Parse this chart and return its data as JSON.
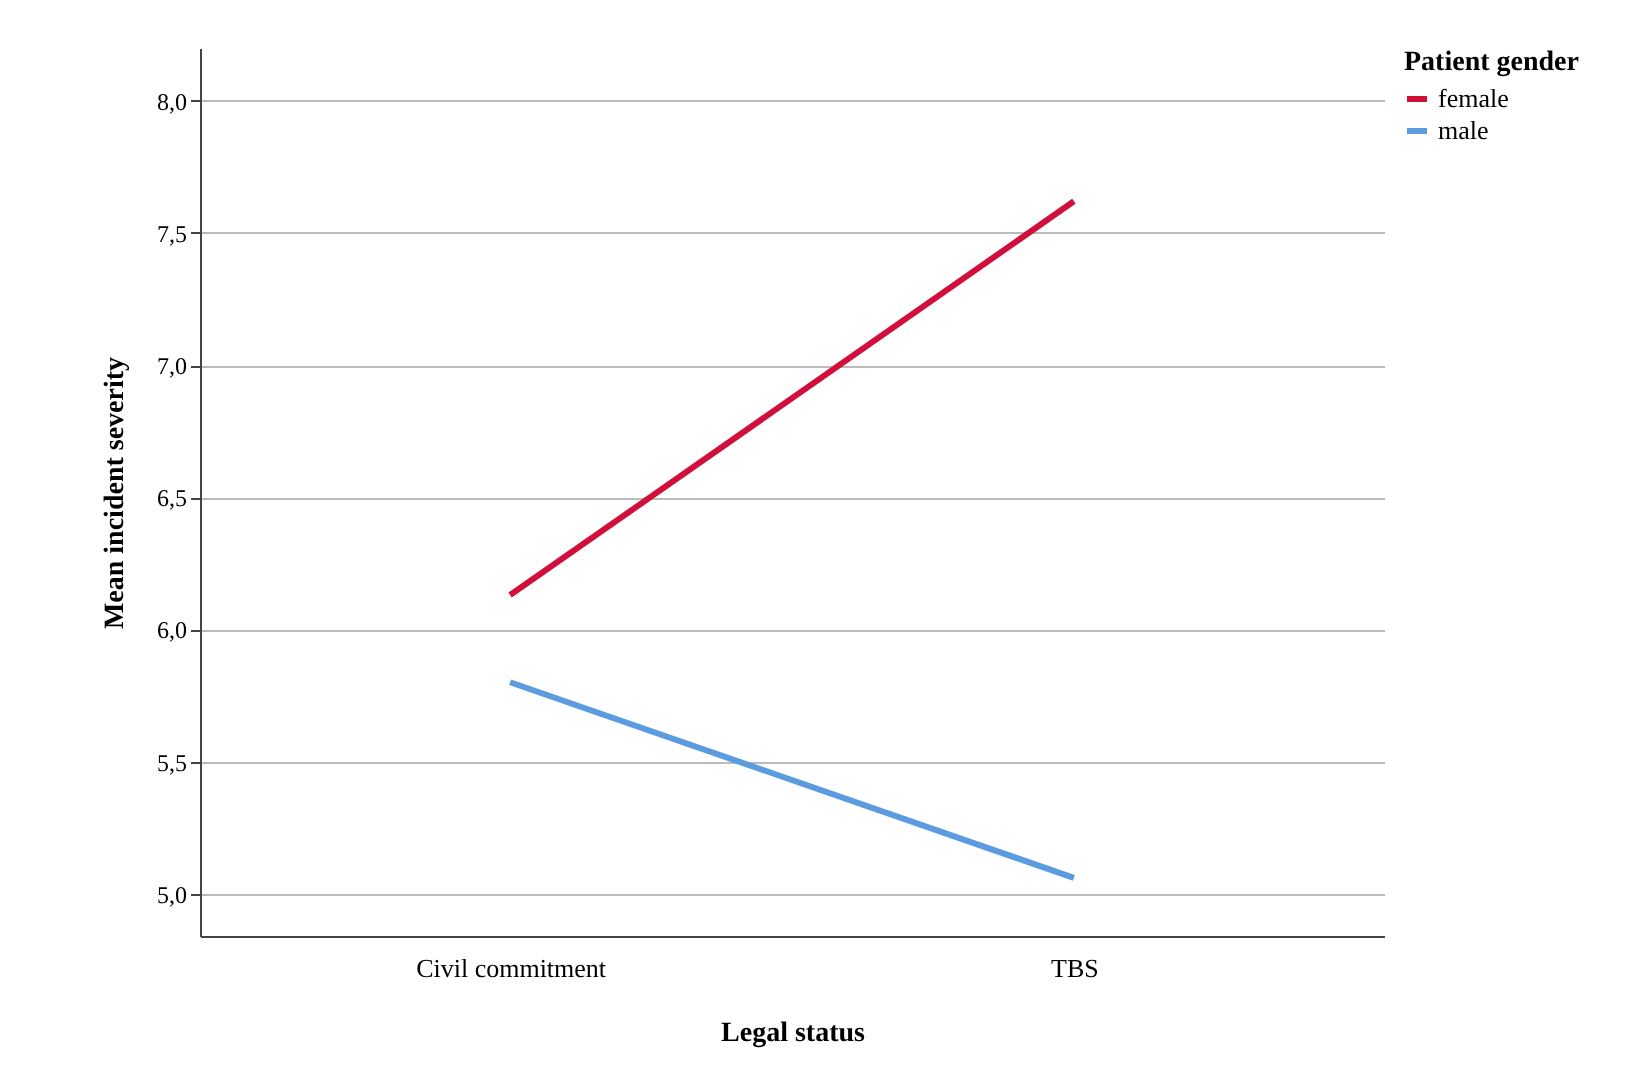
{
  "chart_data": {
    "type": "line",
    "xlabel": "Legal status",
    "ylabel": "Mean incident severity",
    "legend_title": "Patient gender",
    "categories": [
      "Civil commitment",
      "TBS"
    ],
    "series": [
      {
        "name": "female",
        "color": "#d0103a",
        "values": [
          6.13,
          7.62
        ]
      },
      {
        "name": "male",
        "color": "#5b9be0",
        "values": [
          5.8,
          5.06
        ]
      }
    ],
    "ylim": [
      4.84,
      8.2
    ],
    "yticks": [
      {
        "value": 5,
        "label": "5,0"
      },
      {
        "value": 5.5,
        "label": "5,5"
      },
      {
        "value": 6,
        "label": "6,0"
      },
      {
        "value": 6.5,
        "label": "6,5"
      },
      {
        "value": 7,
        "label": "7,0"
      },
      {
        "value": 7.5,
        "label": "7,5"
      },
      {
        "value": 8,
        "label": "8,0"
      }
    ],
    "grid": "y",
    "legend": "top right",
    "marker": "none",
    "line_style": "solid"
  }
}
